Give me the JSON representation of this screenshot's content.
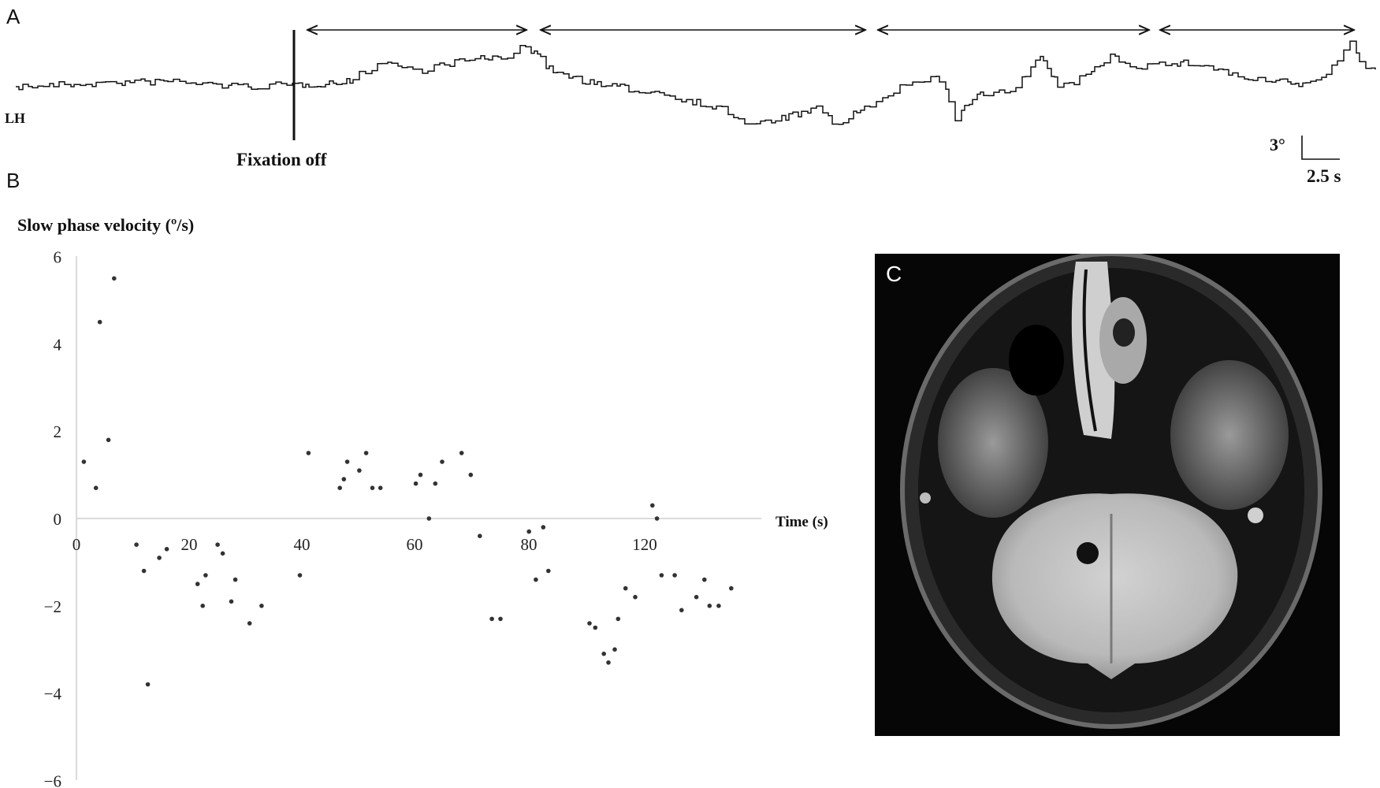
{
  "panel_a": {
    "letter": "A",
    "trace_label": "LH",
    "event_label": "Fixation off",
    "scale_bar": {
      "vertical_label": "3°",
      "horizontal_label": "2.5 s"
    }
  },
  "panel_b": {
    "letter": "B"
  },
  "panel_c": {
    "letter": "C",
    "image_description_icon": "mri-axial-brain-image"
  },
  "chart_data": {
    "type": "scatter",
    "title": "Slow phase velocity (º/s)",
    "xlabel": "Time (s)",
    "ylabel": "",
    "xlim": [
      0,
      120
    ],
    "ylim": [
      -6,
      6
    ],
    "x_ticks": [
      "0",
      "20",
      "40",
      "60",
      "80",
      "120"
    ],
    "y_ticks": [
      "6",
      "4",
      "2",
      "0",
      "−2",
      "−4",
      "−6"
    ],
    "grid": false,
    "series": [
      {
        "points": [
          [
            1.3,
            1.3
          ],
          [
            3.4,
            0.7
          ],
          [
            4.1,
            4.5
          ],
          [
            5.6,
            1.8
          ],
          [
            6.6,
            5.5
          ],
          [
            10.5,
            -0.6
          ],
          [
            11.8,
            -1.2
          ],
          [
            12.5,
            -3.8
          ],
          [
            14.5,
            -0.9
          ],
          [
            15.8,
            -0.7
          ],
          [
            21.2,
            -1.5
          ],
          [
            22.1,
            -2.0
          ],
          [
            22.6,
            -1.3
          ],
          [
            24.7,
            -0.6
          ],
          [
            25.6,
            -0.8
          ],
          [
            27.1,
            -1.9
          ],
          [
            27.8,
            -1.4
          ],
          [
            30.3,
            -2.4
          ],
          [
            32.4,
            -2.0
          ],
          [
            39.1,
            -1.3
          ],
          [
            40.6,
            1.5
          ],
          [
            46.1,
            0.7
          ],
          [
            46.8,
            0.9
          ],
          [
            47.4,
            1.3
          ],
          [
            49.5,
            1.1
          ],
          [
            50.7,
            1.5
          ],
          [
            51.8,
            0.7
          ],
          [
            53.2,
            0.7
          ],
          [
            59.4,
            0.8
          ],
          [
            60.2,
            1.0
          ],
          [
            61.7,
            0.0
          ],
          [
            62.8,
            0.8
          ],
          [
            64.0,
            1.3
          ],
          [
            67.4,
            1.5
          ],
          [
            69.0,
            1.0
          ],
          [
            70.6,
            -0.4
          ],
          [
            72.7,
            -2.3
          ],
          [
            74.2,
            -2.3
          ],
          [
            79.2,
            -0.3
          ],
          [
            80.4,
            -1.4
          ],
          [
            81.7,
            -0.2
          ],
          [
            82.6,
            -1.2
          ],
          [
            89.8,
            -2.4
          ],
          [
            90.8,
            -2.5
          ],
          [
            92.3,
            -3.1
          ],
          [
            93.1,
            -3.3
          ],
          [
            94.2,
            -3.0
          ],
          [
            94.8,
            -2.3
          ],
          [
            96.1,
            -1.6
          ],
          [
            97.8,
            -1.8
          ],
          [
            100.8,
            0.3
          ],
          [
            101.6,
            0.0
          ],
          [
            102.4,
            -1.3
          ],
          [
            104.7,
            -1.3
          ],
          [
            105.9,
            -2.1
          ],
          [
            108.5,
            -1.8
          ],
          [
            109.9,
            -1.4
          ],
          [
            110.8,
            -2.0
          ],
          [
            112.4,
            -2.0
          ],
          [
            114.6,
            -1.6
          ]
        ]
      }
    ]
  }
}
